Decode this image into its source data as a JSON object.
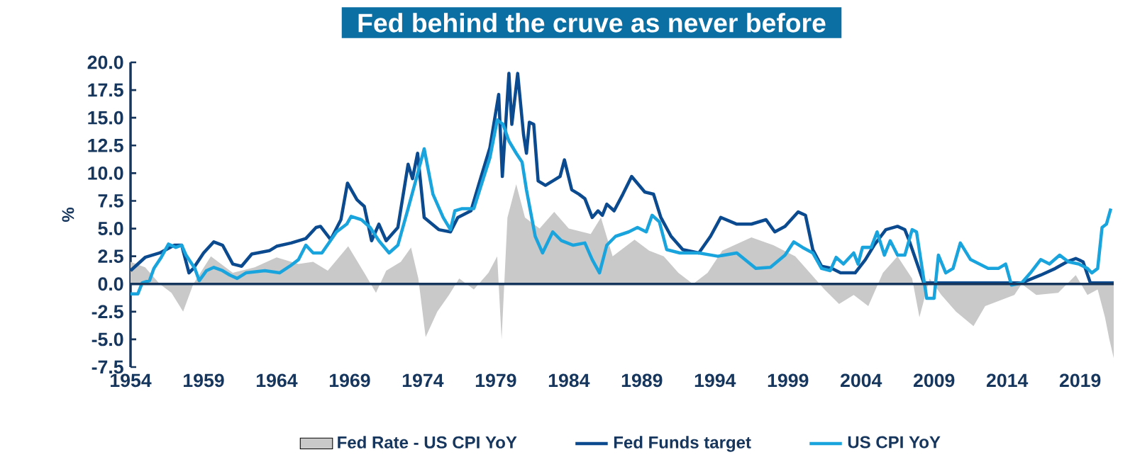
{
  "chart_data": {
    "type": "line",
    "title": "Fed behind the cruve as never before",
    "ylabel": "%",
    "xlim": [
      1954,
      2021.3
    ],
    "xticks": [
      1954,
      1959,
      1964,
      1969,
      1974,
      1979,
      1984,
      1989,
      1994,
      1999,
      2004,
      2009,
      2014,
      2019
    ],
    "ylim": [
      -7.5,
      20
    ],
    "yticks": [
      {
        "value": -7.5,
        "label": "-7.5"
      },
      {
        "value": -5,
        "label": "-5.0"
      },
      {
        "value": -2.5,
        "label": "-2.5"
      },
      {
        "value": 0,
        "label": "0.0"
      },
      {
        "value": 2.5,
        "label": "2.5"
      },
      {
        "value": 5,
        "label": "5.0"
      },
      {
        "value": 7.5,
        "label": "7.5"
      },
      {
        "value": 10,
        "label": "10.0"
      },
      {
        "value": 12.5,
        "label": "12.5"
      },
      {
        "value": 15,
        "label": "15.0"
      },
      {
        "value": 17.5,
        "label": "17.5"
      },
      {
        "value": 20,
        "label": "20.0"
      }
    ],
    "legend": "bottom",
    "grid": false,
    "marker": "none",
    "series": [
      {
        "name": "Fed Rate - US CPI YoY",
        "type": "area",
        "color": "#c9c9c9",
        "x": [
          1954.0,
          1955.0,
          1956.0,
          1956.8,
          1957.6,
          1958.3,
          1959.5,
          1961.0,
          1962.5,
          1964.0,
          1965.5,
          1966.5,
          1967.5,
          1968.9,
          1970.0,
          1970.8,
          1971.5,
          1972.5,
          1973.2,
          1973.7,
          1974.2,
          1975.0,
          1975.8,
          1976.5,
          1977.5,
          1978.5,
          1979.1,
          1979.4,
          1979.8,
          1980.4,
          1981.0,
          1982.0,
          1983.0,
          1984.0,
          1985.5,
          1986.2,
          1987.0,
          1988.5,
          1989.5,
          1990.5,
          1991.5,
          1992.5,
          1993.5,
          1994.5,
          1996.5,
          1998.0,
          1999.5,
          2000.5,
          2001.5,
          2002.5,
          2003.5,
          2004.5,
          2005.5,
          2006.5,
          2007.5,
          2008.0,
          2008.7,
          2009.5,
          2010.5,
          2011.7,
          2012.5,
          2013.5,
          2014.5,
          2015.0,
          2016.0,
          2017.5,
          2018.7,
          2019.5,
          2020.2,
          2020.7,
          2021.0,
          2021.3
        ],
        "values": [
          2.0,
          1.5,
          0.0,
          -0.8,
          -2.5,
          0.0,
          2.5,
          1.0,
          1.5,
          2.4,
          1.8,
          2.0,
          1.2,
          3.4,
          1.0,
          -0.8,
          1.2,
          2.0,
          3.3,
          0.5,
          -4.8,
          -2.5,
          -1.0,
          0.5,
          -0.5,
          1.0,
          2.5,
          -5.0,
          6.0,
          9.0,
          6.0,
          5.0,
          6.5,
          5.0,
          4.5,
          6.0,
          2.5,
          4.0,
          3.0,
          2.5,
          1.0,
          0.0,
          1.0,
          3.0,
          4.2,
          3.5,
          2.5,
          1.0,
          -0.5,
          -1.8,
          -1.0,
          -2.0,
          1.0,
          2.5,
          0.5,
          -3.0,
          0.5,
          -1.0,
          -2.5,
          -3.8,
          -2.0,
          -1.5,
          -1.0,
          0.0,
          -1.0,
          -0.8,
          0.8,
          -1.0,
          -0.5,
          -3.0,
          -5.0,
          -6.7
        ]
      },
      {
        "name": "Fed Funds target",
        "color": "#0c4a8f",
        "x": [
          1954.0,
          1955.0,
          1956.0,
          1957.0,
          1957.5,
          1958.0,
          1958.3,
          1959.0,
          1959.7,
          1960.3,
          1961.0,
          1961.6,
          1962.3,
          1963.5,
          1964.0,
          1965.0,
          1966.0,
          1966.7,
          1967.0,
          1967.7,
          1968.4,
          1968.85,
          1969.5,
          1970.0,
          1970.5,
          1971.0,
          1971.5,
          1972.3,
          1973.0,
          1973.3,
          1973.65,
          1974.1,
          1975.1,
          1975.9,
          1976.4,
          1977.3,
          1978.0,
          1978.6,
          1979.2,
          1979.45,
          1979.9,
          1980.1,
          1980.5,
          1980.9,
          1981.1,
          1981.3,
          1981.6,
          1981.9,
          1982.4,
          1982.9,
          1983.4,
          1983.7,
          1984.2,
          1984.7,
          1985.1,
          1985.6,
          1986.0,
          1986.3,
          1986.6,
          1987.1,
          1987.7,
          1988.3,
          1989.2,
          1989.8,
          1990.3,
          1991.0,
          1991.8,
          1992.9,
          1993.7,
          1994.4,
          1995.5,
          1996.5,
          1997.5,
          1998.1,
          1998.8,
          1999.7,
          2000.2,
          2000.7,
          2001.3,
          2002.0,
          2002.6,
          2003.6,
          2004.3,
          2004.9,
          2005.7,
          2006.5,
          2007.0,
          2007.3,
          2007.8,
          2008.3,
          2015.0,
          2016.3,
          2017.3,
          2018.1,
          2018.7,
          2019.2,
          2019.7,
          2021.3
        ],
        "values": [
          1.2,
          2.4,
          2.8,
          3.5,
          3.5,
          1.0,
          1.4,
          2.8,
          3.8,
          3.5,
          1.8,
          1.6,
          2.7,
          3.0,
          3.4,
          3.7,
          4.1,
          5.1,
          5.2,
          4.0,
          5.8,
          9.1,
          7.6,
          7.0,
          3.9,
          5.4,
          3.9,
          5.1,
          10.8,
          9.5,
          11.8,
          6.0,
          4.9,
          4.7,
          6.0,
          6.6,
          9.7,
          12.3,
          17.1,
          9.7,
          19.0,
          14.4,
          19.0,
          13.5,
          11.8,
          14.6,
          14.4,
          9.3,
          8.9,
          9.3,
          9.7,
          11.2,
          8.5,
          8.1,
          7.7,
          6.0,
          6.6,
          6.2,
          7.2,
          6.6,
          8.1,
          9.7,
          8.3,
          8.1,
          6.0,
          4.3,
          3.1,
          2.8,
          4.3,
          6.0,
          5.4,
          5.4,
          5.8,
          4.7,
          5.2,
          6.5,
          6.2,
          3.1,
          1.6,
          1.4,
          1.0,
          1.0,
          2.2,
          3.5,
          4.9,
          5.2,
          4.9,
          3.9,
          2.0,
          0.1,
          0.1,
          0.8,
          1.4,
          2.0,
          2.3,
          2.0,
          0.1,
          0.1
        ]
      },
      {
        "name": "US CPI YoY",
        "color": "#19a4de",
        "x": [
          1954.0,
          1954.5,
          1954.8,
          1955.3,
          1955.6,
          1956.1,
          1956.6,
          1957.1,
          1957.5,
          1957.8,
          1958.4,
          1958.7,
          1959.2,
          1959.7,
          1960.3,
          1960.8,
          1961.3,
          1961.9,
          1963.2,
          1964.2,
          1964.9,
          1965.5,
          1966.0,
          1966.5,
          1967.1,
          1968.1,
          1968.8,
          1969.1,
          1969.8,
          1970.4,
          1971.0,
          1971.7,
          1972.3,
          1973.0,
          1973.6,
          1974.1,
          1974.7,
          1975.4,
          1975.9,
          1976.2,
          1976.7,
          1977.5,
          1978.0,
          1978.6,
          1979.1,
          1979.5,
          1979.9,
          1980.4,
          1980.8,
          1981.1,
          1981.7,
          1982.2,
          1982.9,
          1983.5,
          1984.3,
          1985.1,
          1985.6,
          1986.1,
          1986.6,
          1987.2,
          1988.1,
          1988.7,
          1989.3,
          1989.7,
          1990.2,
          1990.7,
          1991.6,
          1992.9,
          1994.2,
          1995.5,
          1996.8,
          1997.8,
          1998.8,
          1999.4,
          2000.0,
          2000.7,
          2001.3,
          2001.9,
          2002.3,
          2002.8,
          2003.5,
          2003.8,
          2004.1,
          2004.7,
          2005.1,
          2005.6,
          2006.0,
          2006.5,
          2007.0,
          2007.5,
          2007.8,
          2008.5,
          2009.0,
          2009.3,
          2009.8,
          2010.3,
          2010.8,
          2011.5,
          2012.1,
          2012.7,
          2013.4,
          2013.9,
          2014.3,
          2015.0,
          2015.6,
          2016.3,
          2016.9,
          2017.6,
          2018.2,
          2018.9,
          2019.5,
          2019.8,
          2020.2,
          2020.5,
          2020.8,
          2021.1
        ],
        "values": [
          -0.9,
          -0.9,
          0.1,
          0.3,
          1.4,
          2.4,
          3.6,
          3.3,
          3.5,
          2.6,
          1.4,
          0.3,
          1.2,
          1.5,
          1.2,
          0.8,
          0.5,
          1.0,
          1.2,
          1.0,
          1.6,
          2.2,
          3.5,
          2.8,
          2.8,
          4.7,
          5.4,
          6.1,
          5.8,
          5.1,
          3.9,
          2.8,
          3.5,
          6.8,
          9.7,
          12.2,
          8.1,
          6.0,
          4.9,
          6.6,
          6.8,
          6.8,
          8.9,
          11.4,
          14.8,
          14.4,
          12.9,
          11.8,
          11.0,
          8.5,
          4.3,
          2.8,
          4.7,
          3.9,
          3.5,
          3.7,
          2.2,
          1.0,
          3.5,
          4.3,
          4.7,
          5.1,
          4.7,
          6.2,
          5.6,
          3.1,
          2.8,
          2.8,
          2.5,
          2.8,
          1.4,
          1.5,
          2.6,
          3.8,
          3.3,
          2.8,
          1.4,
          1.2,
          2.4,
          1.8,
          2.8,
          1.8,
          3.3,
          3.3,
          4.7,
          2.6,
          3.9,
          2.6,
          2.6,
          4.9,
          4.7,
          -1.3,
          -1.3,
          2.6,
          1.0,
          1.4,
          3.7,
          2.2,
          1.8,
          1.4,
          1.4,
          1.8,
          -0.1,
          0.1,
          1.0,
          2.2,
          1.8,
          2.6,
          2.0,
          1.8,
          1.4,
          1.0,
          1.4,
          5.1,
          5.4,
          6.8
        ]
      }
    ]
  }
}
